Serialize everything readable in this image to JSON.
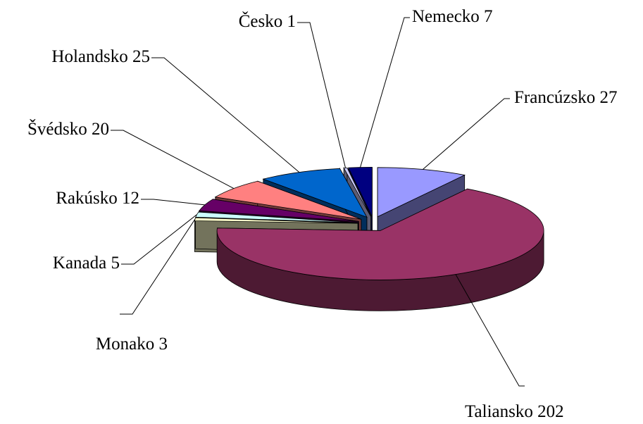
{
  "chart_data": {
    "type": "pie",
    "categories": [
      "Francúzsko",
      "Taliansko",
      "Monako",
      "Kanada",
      "Rakúsko",
      "Švédsko",
      "Holandsko",
      "Česko",
      "Nemecko"
    ],
    "values": [
      27,
      202,
      3,
      5,
      12,
      20,
      25,
      1,
      7
    ],
    "colors": [
      "#9999ff",
      "#993366",
      "#ffffcc",
      "#ccffff",
      "#660066",
      "#ff8080",
      "#0066cc",
      "#ccccff",
      "#000080"
    ],
    "three_d": true,
    "exploded": true
  }
}
